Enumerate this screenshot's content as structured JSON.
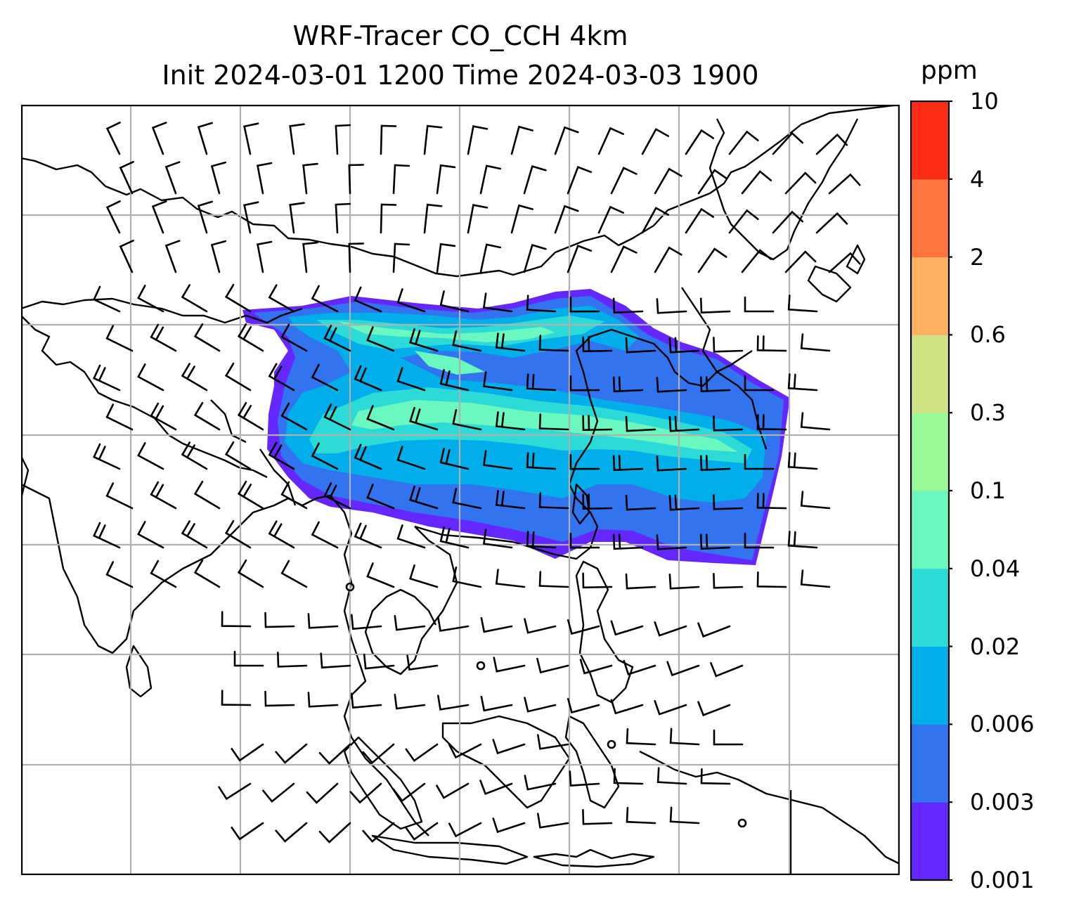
{
  "title": {
    "line1": "WRF-Tracer CO_CCH 4km",
    "line2": "Init 2024-03-01 1200 Time 2024-03-03 1900"
  },
  "colorbar": {
    "unit": "ppm",
    "levels": [
      "0.001",
      "0.003",
      "0.006",
      "0.02",
      "0.04",
      "0.1",
      "0.3",
      "0.6",
      "2",
      "4",
      "10"
    ],
    "colors": [
      "#6428ff",
      "#3273f0",
      "#00aeea",
      "#2ddbd6",
      "#6af7c0",
      "#99f996",
      "#d0e384",
      "#ffb061",
      "#ff733c",
      "#ff2c17"
    ]
  },
  "map": {
    "gridlines": true,
    "coastline_color": "#000000",
    "grid_color": "#b0b0b0",
    "tracer_plume_levels": [
      "0.003",
      "0.006",
      "0.02",
      "0.04",
      "0.1"
    ]
  }
}
